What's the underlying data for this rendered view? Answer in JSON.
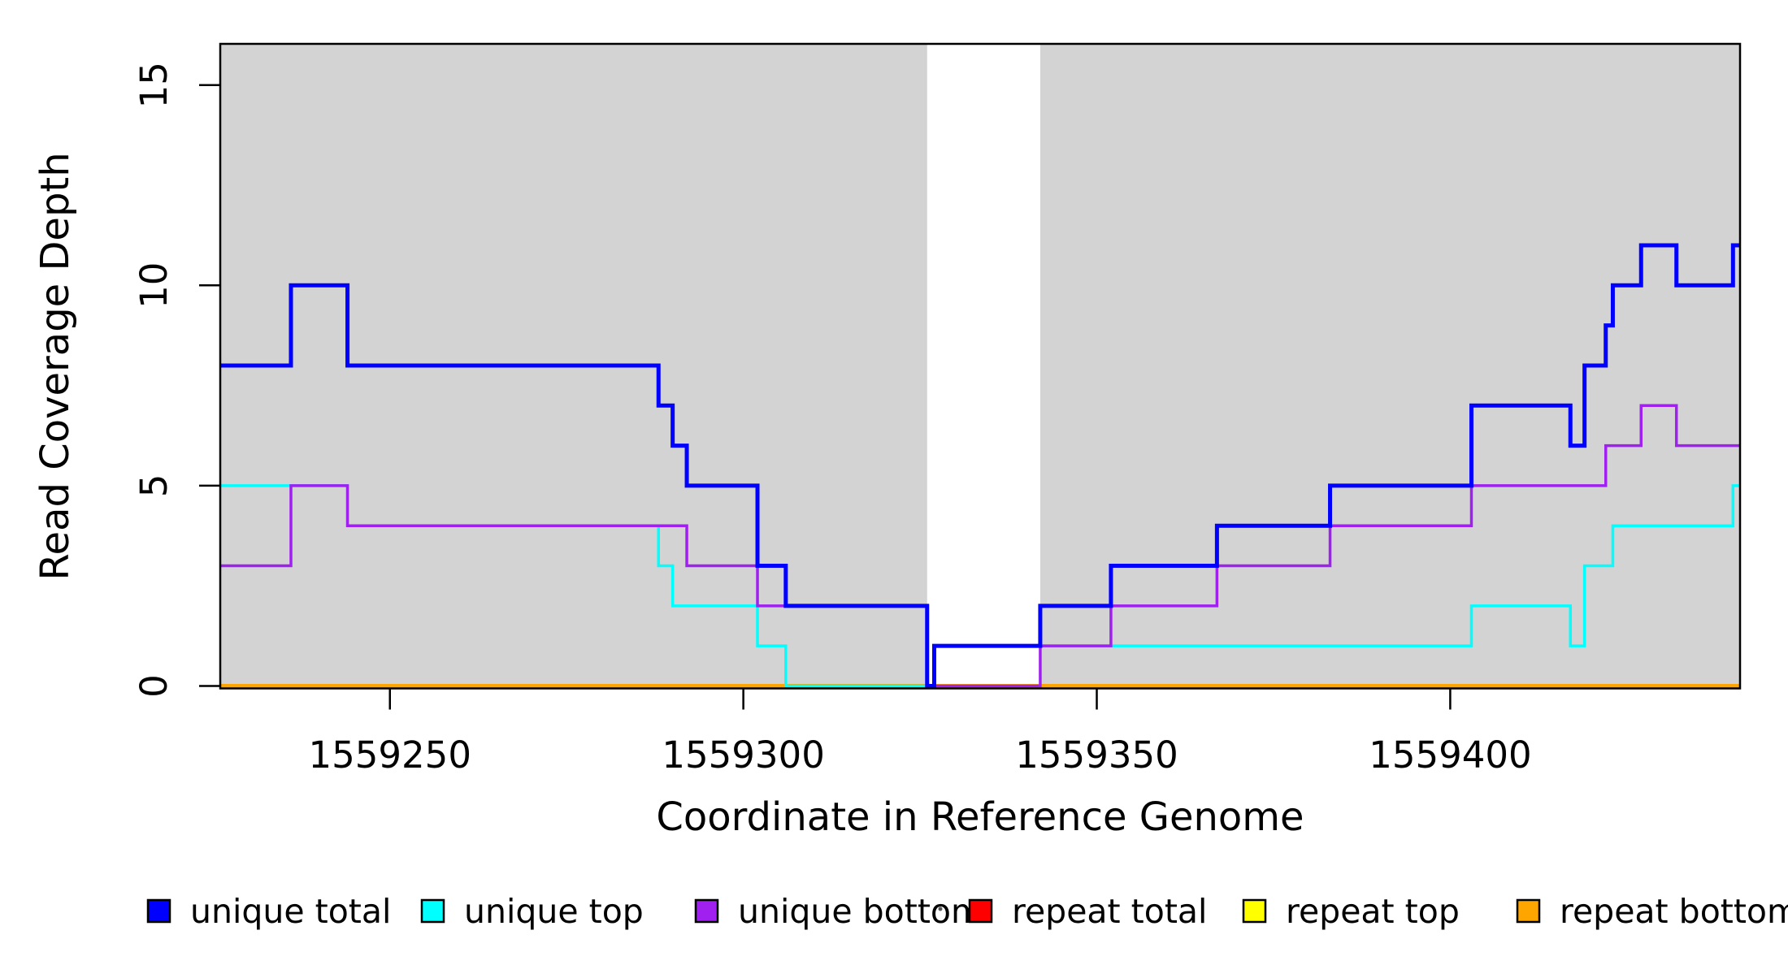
{
  "figure": {
    "background": "#ffffff",
    "plot_background": "#ffffff",
    "shade_color": "#d3d3d3",
    "axis_color": "#000000"
  },
  "chart_data": {
    "type": "line",
    "subtype": "step-post",
    "title": "",
    "xlabel": "Coordinate in Reference Genome",
    "ylabel": "Read Coverage Depth",
    "xlim": [
      1559226,
      1559441
    ],
    "ylim": [
      0,
      16
    ],
    "x_ticks": [
      "1559250",
      "1559300",
      "1559350",
      "1559400"
    ],
    "x_tick_values": [
      1559250,
      1559300,
      1559350,
      1559400
    ],
    "y_ticks": [
      "0",
      "5",
      "10",
      "15"
    ],
    "y_tick_values": [
      0,
      5,
      10,
      15
    ],
    "grid": "off",
    "legend_position": "bottom",
    "shaded_regions": [
      {
        "name": "target-region-1",
        "start": 1559226,
        "end": 1559326
      },
      {
        "name": "target-region-2",
        "start": 1559342,
        "end": 1559441
      }
    ],
    "draw_order": [
      "repeat total",
      "repeat top",
      "repeat bottom",
      "unique top",
      "unique bottom",
      "unique total"
    ],
    "series": [
      {
        "name": "unique total",
        "color": "#0000ff",
        "line_width": 5,
        "points": [
          [
            1559226,
            8
          ],
          [
            1559236,
            10
          ],
          [
            1559244,
            8
          ],
          [
            1559288,
            7
          ],
          [
            1559290,
            6
          ],
          [
            1559292,
            5
          ],
          [
            1559302,
            3
          ],
          [
            1559306,
            2
          ],
          [
            1559326,
            0
          ],
          [
            1559327,
            1
          ],
          [
            1559342,
            2
          ],
          [
            1559352,
            3
          ],
          [
            1559367,
            4
          ],
          [
            1559383,
            5
          ],
          [
            1559403,
            7
          ],
          [
            1559417,
            6
          ],
          [
            1559419,
            8
          ],
          [
            1559422,
            9
          ],
          [
            1559423,
            10
          ],
          [
            1559427,
            11
          ],
          [
            1559432,
            10
          ],
          [
            1559440,
            11
          ],
          [
            1559441,
            11
          ]
        ]
      },
      {
        "name": "unique top",
        "color": "#00ffff",
        "line_width": 3.5,
        "points": [
          [
            1559226,
            5
          ],
          [
            1559244,
            4
          ],
          [
            1559288,
            3
          ],
          [
            1559290,
            2
          ],
          [
            1559302,
            1
          ],
          [
            1559306,
            0
          ],
          [
            1559327,
            1
          ],
          [
            1559403,
            2
          ],
          [
            1559417,
            1
          ],
          [
            1559419,
            3
          ],
          [
            1559423,
            4
          ],
          [
            1559440,
            5
          ],
          [
            1559441,
            5
          ]
        ]
      },
      {
        "name": "unique bottom",
        "color": "#a020f0",
        "line_width": 3.5,
        "points": [
          [
            1559226,
            3
          ],
          [
            1559236,
            5
          ],
          [
            1559244,
            4
          ],
          [
            1559292,
            3
          ],
          [
            1559302,
            2
          ],
          [
            1559326,
            0
          ],
          [
            1559342,
            1
          ],
          [
            1559352,
            2
          ],
          [
            1559367,
            3
          ],
          [
            1559383,
            4
          ],
          [
            1559403,
            5
          ],
          [
            1559422,
            6
          ],
          [
            1559427,
            7
          ],
          [
            1559432,
            6
          ],
          [
            1559441,
            6
          ]
        ]
      },
      {
        "name": "repeat total",
        "color": "#ff0000",
        "line_width": 3,
        "points": [
          [
            1559226,
            0
          ],
          [
            1559441,
            0
          ]
        ]
      },
      {
        "name": "repeat top",
        "color": "#ffff00",
        "line_width": 3,
        "points": [
          [
            1559226,
            0
          ],
          [
            1559441,
            0
          ]
        ]
      },
      {
        "name": "repeat bottom",
        "color": "#ffa500",
        "line_width": 5,
        "points": [
          [
            1559226,
            0
          ],
          [
            1559441,
            0
          ]
        ]
      }
    ]
  },
  "legend": {
    "items": [
      {
        "label": "unique total",
        "color": "#0000ff"
      },
      {
        "label": "unique top",
        "color": "#00ffff"
      },
      {
        "label": "unique bottom",
        "color": "#a020f0"
      },
      {
        "label": "repeat total",
        "color": "#ff0000"
      },
      {
        "label": "repeat top",
        "color": "#ffff00"
      },
      {
        "label": "repeat bottom",
        "color": "#ffa500"
      }
    ]
  }
}
